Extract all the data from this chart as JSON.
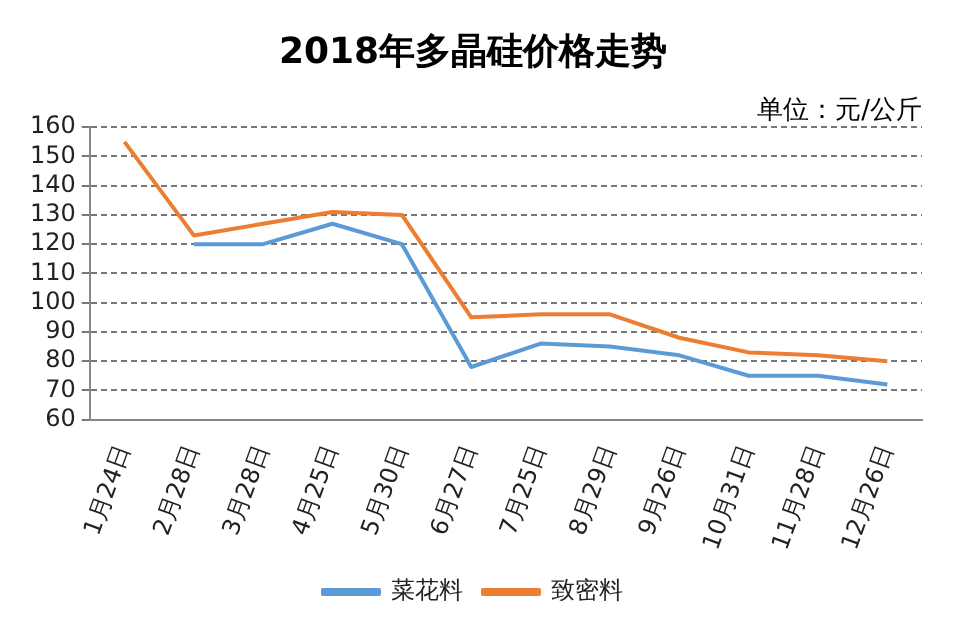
{
  "chart_data": {
    "type": "line",
    "title": "2018年多晶硅价格走势",
    "annotations": [
      "单位：元/公斤"
    ],
    "categories": [
      "1月24日",
      "2月28日",
      "3月28日",
      "4月25日",
      "5月30日",
      "6月27日",
      "7月25日",
      "8月29日",
      "9月26日",
      "10月31日",
      "11月28日",
      "12月26日"
    ],
    "series": [
      {
        "name": "菜花料",
        "color": "#5b9bd5",
        "values": [
          null,
          120,
          120,
          127,
          120,
          78,
          86,
          85,
          82,
          75,
          75,
          72
        ]
      },
      {
        "name": "致密料",
        "color": "#ed7d31",
        "values": [
          155,
          123,
          127,
          131,
          130,
          95,
          96,
          96,
          88,
          83,
          82,
          80
        ]
      }
    ],
    "ylim": [
      60,
      160
    ],
    "yticks": [
      60,
      70,
      80,
      90,
      100,
      110,
      120,
      130,
      140,
      150,
      160
    ],
    "grid": "y",
    "legend": "bottom",
    "marker": "none",
    "line_style": "solid"
  }
}
